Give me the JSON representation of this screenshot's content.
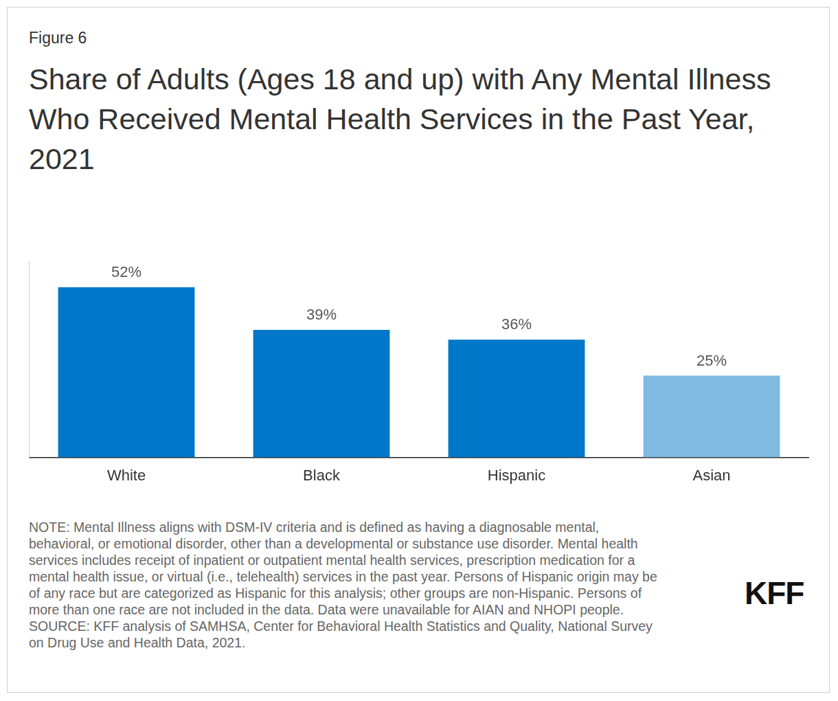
{
  "chart_data": {
    "type": "bar",
    "figure_label": "Figure 6",
    "title": "Share of Adults (Ages 18 and up) with Any Mental Illness Who Received Mental Health Services in the Past Year, 2021",
    "categories": [
      "White",
      "Black",
      "Hispanic",
      "Asian"
    ],
    "values": [
      52,
      39,
      36,
      25
    ],
    "value_labels": [
      "52%",
      "39%",
      "36%",
      "25%"
    ],
    "colors": [
      "#0077c8",
      "#0077c8",
      "#0077c8",
      "#80bae2"
    ],
    "ylim": [
      0,
      60
    ],
    "grid": false,
    "data_labels": true,
    "tick_labels": "x",
    "note": [
      "NOTE: Mental Illness aligns with DSM-IV criteria and is defined as having a diagnosable mental,",
      "behavioral, or emotional disorder, other than a developmental or substance use disorder. Mental health",
      "services includes receipt of inpatient or outpatient mental health services, prescription medication for a",
      "mental health issue, or virtual (i.e., telehealth) services in the past year. Persons of Hispanic origin may be",
      "of any race but are categorized as Hispanic for this analysis; other groups are non-Hispanic. Persons of",
      "more than one race are not included in the data. Data were unavailable for AIAN and NHOPI people."
    ],
    "source": [
      "SOURCE: KFF analysis of SAMHSA, Center for Behavioral Health Statistics and Quality, National Survey",
      "on Drug Use and Health Data, 2021."
    ],
    "logo": "KFF"
  }
}
